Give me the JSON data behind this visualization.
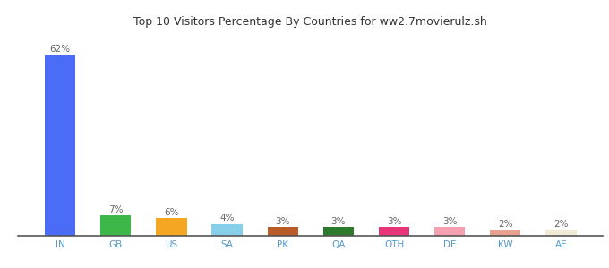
{
  "categories": [
    "IN",
    "GB",
    "US",
    "SA",
    "PK",
    "QA",
    "OTH",
    "DE",
    "KW",
    "AE"
  ],
  "values": [
    62,
    7,
    6,
    4,
    3,
    3,
    3,
    3,
    2,
    2
  ],
  "labels": [
    "62%",
    "7%",
    "6%",
    "4%",
    "3%",
    "3%",
    "3%",
    "3%",
    "2%",
    "2%"
  ],
  "bar_colors": [
    "#4a6cf7",
    "#3cb84a",
    "#f5a623",
    "#87ceeb",
    "#b85c2a",
    "#2d7a2d",
    "#e8357a",
    "#f4a0b0",
    "#e8a090",
    "#f0ead6"
  ],
  "title": "Top 10 Visitors Percentage By Countries for ww2.7movierulz.sh",
  "title_fontsize": 9,
  "label_fontsize": 7.5,
  "tick_fontsize": 7.5,
  "ylim": [
    0,
    70
  ],
  "background_color": "#ffffff"
}
